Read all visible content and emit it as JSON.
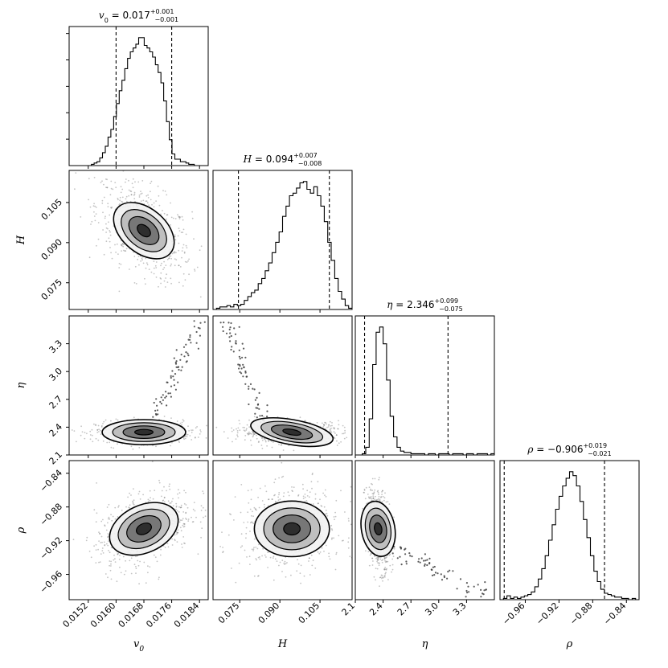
{
  "chart_data": {
    "type": "corner",
    "parameters": [
      {
        "label": "v",
        "sub": "0",
        "median": "0.017",
        "plus": "+0.001",
        "minus": "−0.001",
        "range": [
          0.01465,
          0.01865
        ],
        "ticks": [
          0.0152,
          0.016,
          0.0168,
          0.0176,
          0.0184
        ],
        "ticklabels": [
          "0.0152",
          "0.0160",
          "0.0168",
          "0.0176",
          "0.0184"
        ],
        "q": [
          0.016,
          0.0176
        ],
        "center": 0.0168,
        "hist": [
          0,
          0,
          0,
          0,
          0,
          0,
          0,
          0,
          1,
          2,
          3,
          6,
          10,
          15,
          22,
          28,
          38,
          48,
          58,
          66,
          75,
          83,
          88,
          91,
          94,
          99,
          99,
          93,
          91,
          88,
          84,
          78,
          72,
          64,
          50,
          34,
          20,
          9,
          5,
          5,
          3,
          3,
          2,
          1,
          1,
          0,
          0,
          0,
          0,
          0
        ]
      },
      {
        "label": "H",
        "sub": "",
        "median": "0.094",
        "plus": "+0.007",
        "minus": "−0.008",
        "range": [
          0.065,
          0.117
        ],
        "ticks": [
          0.075,
          0.09,
          0.105
        ],
        "ticklabels": [
          "0.075",
          "0.090",
          "0.105"
        ],
        "q": [
          0.0745,
          0.1085
        ],
        "center": 0.0945,
        "hist": [
          0,
          1,
          2,
          2,
          3,
          2,
          4,
          3,
          4,
          7,
          10,
          13,
          15,
          20,
          24,
          30,
          36,
          44,
          52,
          60,
          72,
          80,
          88,
          90,
          94,
          98,
          99,
          93,
          90,
          95,
          88,
          80,
          68,
          52,
          38,
          24,
          14,
          8,
          3,
          1
        ]
      },
      {
        "label": "η",
        "sub": "",
        "median": "2.346",
        "plus": "+0.099",
        "minus": "−0.075",
        "range": [
          2.1,
          3.6
        ],
        "ticks": [
          2.1,
          2.4,
          2.7,
          3.0,
          3.3
        ],
        "ticklabels": [
          "2.1",
          "2.4",
          "2.7",
          "3.0",
          "3.3"
        ],
        "q": [
          2.2,
          3.1
        ],
        "center": 2.346,
        "hist": [
          0,
          0,
          1,
          6,
          28,
          70,
          95,
          99,
          86,
          58,
          30,
          14,
          6,
          3,
          2,
          2,
          1,
          1,
          1,
          1,
          0,
          1,
          1,
          0,
          1,
          1,
          1,
          0,
          1,
          1,
          1,
          0,
          1,
          1,
          0,
          1,
          1,
          1,
          0,
          1
        ]
      },
      {
        "label": "ρ",
        "sub": "",
        "median": "−0.906",
        "plus": "+0.019",
        "minus": "−0.021",
        "range": [
          -0.99,
          -0.825
        ],
        "ticks": [
          -0.96,
          -0.92,
          -0.88,
          -0.84
        ],
        "ticklabels": [
          "−0.96",
          "−0.92",
          "−0.88",
          "−0.84"
        ],
        "q": [
          -0.985,
          -0.866
        ],
        "center": -0.906,
        "hist": [
          0,
          1,
          3,
          1,
          2,
          1,
          2,
          3,
          4,
          6,
          10,
          16,
          24,
          34,
          46,
          58,
          70,
          80,
          88,
          94,
          99,
          96,
          88,
          76,
          62,
          48,
          34,
          22,
          14,
          8,
          5,
          4,
          3,
          2,
          2,
          1,
          1,
          0,
          1,
          0
        ]
      }
    ],
    "title_sep": " = ",
    "grid": false,
    "colors": {
      "line": "#000000",
      "fill_dark": "#2b2b2b",
      "fill_light": "#e8e8e8",
      "points": "#555555"
    }
  }
}
